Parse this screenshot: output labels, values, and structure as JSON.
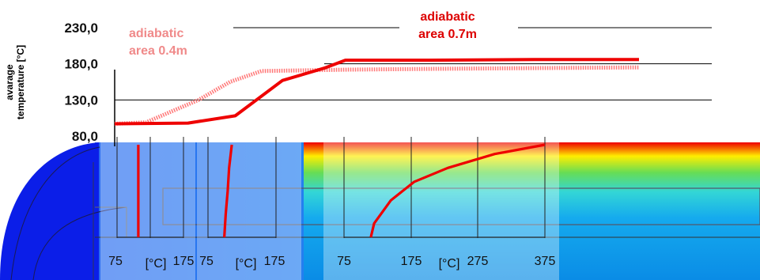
{
  "chart_data": [
    {
      "type": "line",
      "ylabel_lines": [
        "avarage",
        "temperature [°C]"
      ],
      "yticks": [
        "230,0",
        "180,0",
        "130,0",
        "80,0"
      ],
      "ylim": [
        80,
        230
      ],
      "grid": true,
      "annotations": [
        {
          "lines": [
            "adiabatic",
            "area 0.4m"
          ],
          "color": "#f08a8a"
        },
        {
          "lines": [
            "adiabatic",
            "area 0.7m"
          ],
          "color": "#dd0000"
        }
      ],
      "series": [
        {
          "style": "dotted",
          "color": "#ff7777",
          "points": [
            [
              0.0,
              97
            ],
            [
              0.06,
              99
            ],
            [
              0.16,
              130
            ],
            [
              0.22,
              155
            ],
            [
              0.28,
              170
            ],
            [
              0.45,
              172
            ],
            [
              0.6,
              173
            ],
            [
              0.8,
              174
            ],
            [
              1.0,
              175
            ]
          ]
        },
        {
          "style": "solid",
          "color": "#ee0000",
          "points": [
            [
              0.0,
              97
            ],
            [
              0.14,
              98
            ],
            [
              0.23,
              108
            ],
            [
              0.32,
              157
            ],
            [
              0.4,
              174
            ],
            [
              0.44,
              185
            ],
            [
              0.6,
              185
            ],
            [
              0.8,
              186
            ],
            [
              1.0,
              186
            ]
          ]
        }
      ]
    },
    {
      "type": "line",
      "xticks": [
        "75",
        "175"
      ],
      "xunit": "[°C]",
      "xlim": [
        75,
        175
      ],
      "x": [
        107,
        107,
        107,
        107
      ],
      "y": [
        0,
        0.33,
        0.66,
        1.0
      ]
    },
    {
      "type": "line",
      "xticks": [
        "75",
        "175"
      ],
      "xunit": "[°C]",
      "xlim": [
        75,
        175
      ],
      "x": [
        99,
        101,
        104,
        106,
        110
      ],
      "y": [
        0,
        0.25,
        0.5,
        0.75,
        1.0
      ]
    },
    {
      "type": "line",
      "xticks": [
        "75",
        "175",
        "275",
        "375"
      ],
      "xunit": "[°C]",
      "xlim": [
        75,
        375
      ],
      "x": [
        115,
        120,
        145,
        180,
        230,
        300,
        375
      ],
      "y": [
        0,
        0.15,
        0.4,
        0.6,
        0.75,
        0.9,
        1.0
      ]
    }
  ]
}
